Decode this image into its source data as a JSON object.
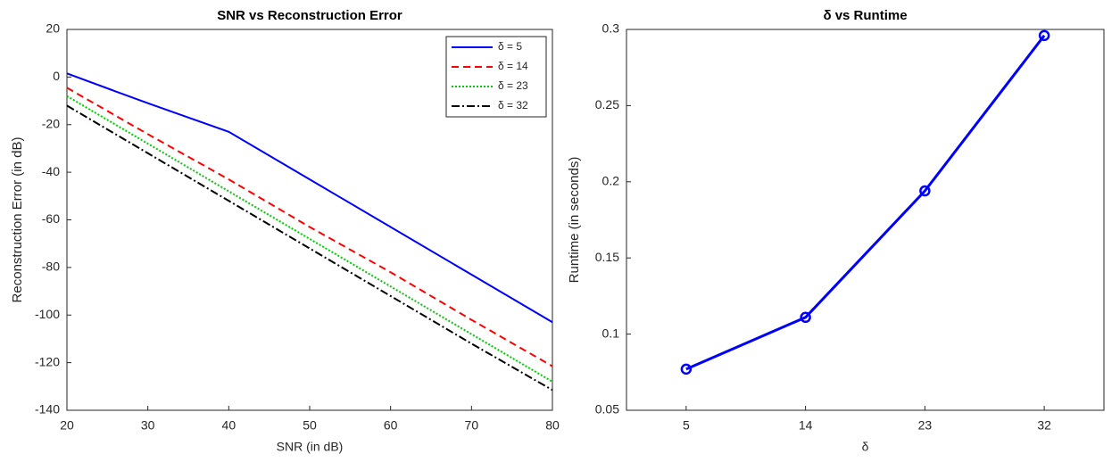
{
  "chart_data": [
    {
      "type": "line",
      "title": "SNR vs Reconstruction Error",
      "xlabel": "SNR (in dB)",
      "ylabel": "Reconstruction Error (in dB)",
      "x": [
        20,
        30,
        40,
        50,
        60,
        70,
        80
      ],
      "xlim": [
        20,
        80
      ],
      "xticks": [
        20,
        30,
        40,
        50,
        60,
        70,
        80
      ],
      "ylim": [
        -140,
        20
      ],
      "yticks": [
        -140,
        -120,
        -100,
        -80,
        -60,
        -40,
        -20,
        0,
        20
      ],
      "legend": "upper right",
      "series": [
        {
          "name": "δ = 5",
          "color": "#0000ff",
          "dash": "solid",
          "values": [
            1.5,
            -11,
            -23,
            -43,
            -63,
            -83,
            -103
          ]
        },
        {
          "name": "δ = 14",
          "color": "#ff0000",
          "dash": "dashed",
          "values": [
            -4.5,
            -24,
            -43,
            -63,
            -82,
            -102,
            -121.5
          ]
        },
        {
          "name": "δ = 23",
          "color": "#00cc00",
          "dash": "dotted",
          "values": [
            -8,
            -28,
            -48,
            -68,
            -88,
            -108,
            -128
          ]
        },
        {
          "name": "δ = 32",
          "color": "#000000",
          "dash": "dashdot",
          "values": [
            -12,
            -32,
            -52,
            -72,
            -92,
            -112,
            -131.5
          ]
        }
      ]
    },
    {
      "type": "line",
      "title": "δ vs Runtime",
      "xlabel": "δ",
      "ylabel": "Runtime (in seconds)",
      "categories": [
        "5",
        "14",
        "23",
        "32"
      ],
      "ylim": [
        0.05,
        0.3
      ],
      "yticks": [
        0.05,
        0.1,
        0.15,
        0.2,
        0.25,
        0.3
      ],
      "marker": "circle",
      "series": [
        {
          "color": "#0000ff",
          "dash": "solid",
          "values": [
            0.077,
            0.111,
            0.194,
            0.296
          ]
        }
      ]
    }
  ]
}
